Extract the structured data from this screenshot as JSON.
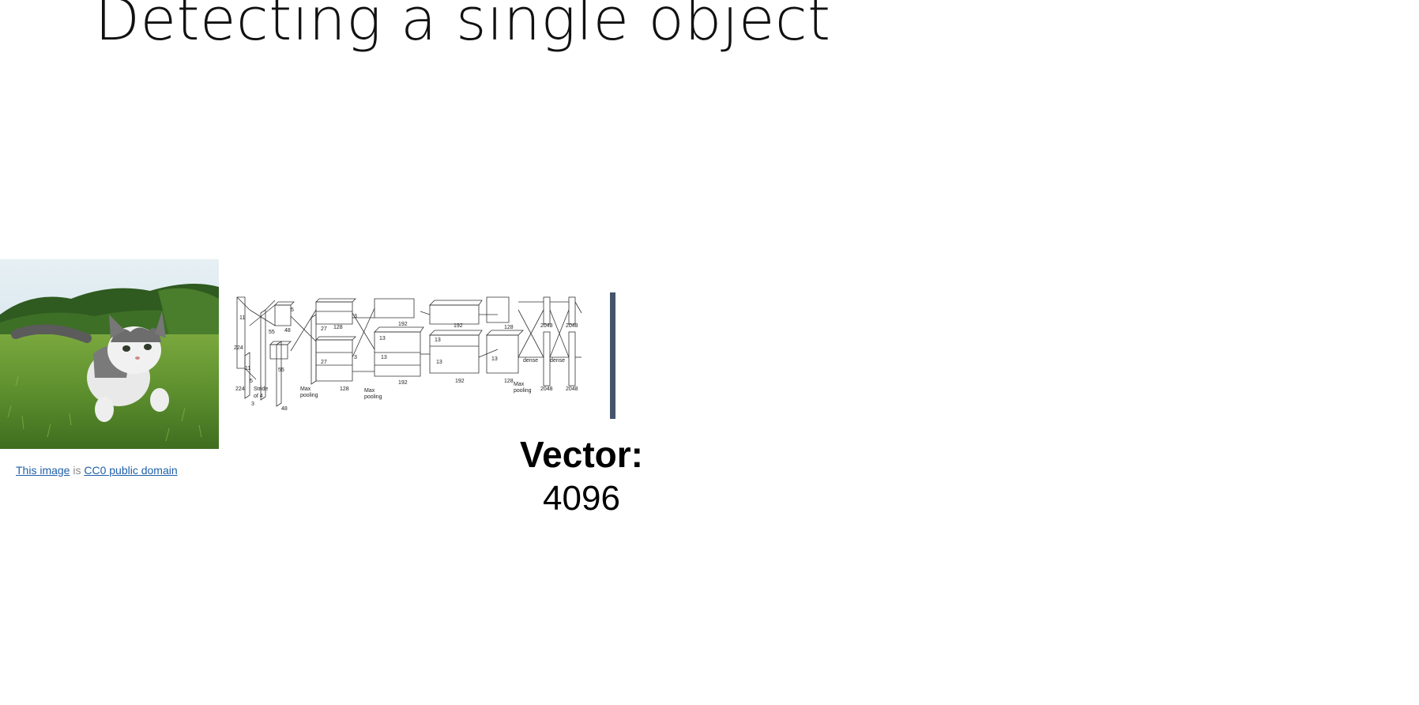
{
  "slide": {
    "title": "Detecting a single object"
  },
  "image": {
    "subject": "kitten-on-grass-photo",
    "caption_link_1": "This image",
    "caption_mid": " is ",
    "caption_link_2": "CC0 public domain"
  },
  "network": {
    "labels": {
      "in_h": "224",
      "in_w": "224",
      "in_c": "3",
      "k11a": "11",
      "k11b": "11",
      "k5": "5",
      "stride": "Stride",
      "of4": "of 4",
      "c1_55a": "55",
      "c1_55b": "55",
      "c1_48a": "48",
      "c1_48b": "48",
      "c1_5": "5",
      "c2_27a": "27",
      "c2_27b": "27",
      "c2_128a": "128",
      "c2_128b": "128",
      "c2_3a": "3",
      "c2_3b": "3",
      "mp1": "Max",
      "mp1b": "pooling",
      "mp2": "Max",
      "mp2b": "pooling",
      "c3_13a": "13",
      "c3_13b": "13",
      "c3_192a": "192",
      "c3_192b": "192",
      "c4_13a": "13",
      "c4_13b": "13",
      "c4_192a": "192",
      "c4_192b": "192",
      "c5_13": "13",
      "c5_128a": "128",
      "c5_128b": "128",
      "mp3": "Max",
      "mp3b": "pooling",
      "d1a": "2048",
      "d1b": "2048",
      "d2a": "2048",
      "d2b": "2048",
      "dense1": "dense",
      "dense2": "dense"
    }
  },
  "output": {
    "label": "Vector:",
    "value": "4096"
  },
  "colors": {
    "divider": "#44546a",
    "link": "#1f5fa8",
    "sky": "#cfe3ee",
    "grass": "#5d8f2e"
  }
}
